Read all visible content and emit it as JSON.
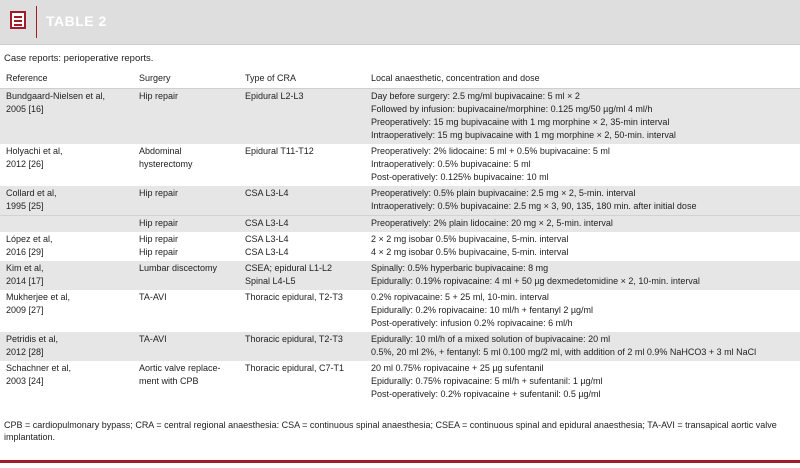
{
  "header": {
    "title": "TABLE 2",
    "icon": "table-list-icon"
  },
  "caption": "Case reports: perioperative reports.",
  "table": {
    "columns": [
      "Reference",
      "Surgery",
      "Type of CRA",
      "Local anaesthetic, concentration and dose"
    ],
    "rows": [
      {
        "reference": [
          "Bundgaard-Nielsen et al,",
          "2005 [16]"
        ],
        "surgery": [
          "Hip repair"
        ],
        "cra": [
          "Epidural L2-L3"
        ],
        "dose": [
          "Day before surgery: 2.5 mg/ml bupivacaine: 5 ml × 2",
          "Followed by infusion: bupivacaine/morphine: 0.125 mg/50 µg/ml 4 ml/h",
          "Preoperatively: 15 mg bupivacaine with 1 mg morphine × 2, 35-min interval",
          "Intraoperatively: 15 mg bupivacaine with 1 mg morphine × 2, 50-min. interval"
        ],
        "shade": true
      },
      {
        "reference": [
          "Holyachi et al,",
          "2012 [26]"
        ],
        "surgery": [
          "Abdominal",
          "hysterectomy"
        ],
        "cra": [
          "Epidural T11-T12"
        ],
        "dose": [
          "Preoperatively: 2% lidocaine: 5 ml + 0.5% bupivacaine: 5 ml",
          "Intraoperatively: 0.5% bupivacaine: 5 ml",
          "Post-operatively: 0.125% bupivacaine: 10 ml"
        ],
        "shade": false
      },
      {
        "reference": [
          "Collard et al,",
          "1995 [25]"
        ],
        "surgery": [
          "Hip repair"
        ],
        "cra": [
          "CSA L3-L4"
        ],
        "dose": [
          "Preoperatively: 0.5% plain bupivacaine: 2.5 mg × 2, 5-min. interval",
          "Intraoperatively: 0.5% bupivacaine: 2.5 mg × 3, 90, 135, 180 min. after initial dose"
        ],
        "shade": true
      },
      {
        "reference": [
          ""
        ],
        "surgery": [
          "Hip repair"
        ],
        "cra": [
          "CSA L3-L4"
        ],
        "dose": [
          "Preoperatively: 2% plain lidocaine: 20 mg × 2, 5-min. interval"
        ],
        "shade": true,
        "line": true
      },
      {
        "reference": [
          "López et al,",
          "2016 [29]"
        ],
        "surgery": [
          "Hip repair",
          "Hip repair"
        ],
        "cra": [
          "CSA L3-L4",
          "CSA L3-L4"
        ],
        "dose": [
          "2 × 2 mg isobar 0.5% bupivacaine, 5-min. interval",
          "4 × 2 mg isobar 0.5% bupivacaine, 5-min. interval"
        ],
        "shade": false
      },
      {
        "reference": [
          "Kim et al,",
          "2014 [17]"
        ],
        "surgery": [
          "Lumbar discectomy"
        ],
        "cra": [
          "CSEA; epidural L1-L2",
          "Spinal L4-L5"
        ],
        "dose": [
          "Spinally: 0.5% hyperbaric bupivacaine: 8 mg",
          "Epidurally: 0.19% ropivacaine: 4 ml + 50 µg dexmedetomidine × 2, 10-min. interval"
        ],
        "shade": true
      },
      {
        "reference": [
          "Mukherjee et al,",
          "2009 [27]"
        ],
        "surgery": [
          "TA-AVI"
        ],
        "cra": [
          "Thoracic epidural, T2-T3"
        ],
        "dose": [
          "0.2% ropivacaine: 5 + 25 ml, 10-min. interval",
          "Epidurally: 0.2% ropivacaine: 10 ml/h + fentanyl 2 µg/ml",
          "Post-operatively: infusion 0.2% ropivacaine: 6 ml/h"
        ],
        "shade": false
      },
      {
        "reference": [
          "Petridis et al,",
          "2012 [28]"
        ],
        "surgery": [
          "TA-AVI"
        ],
        "cra": [
          "Thoracic epidural, T2-T3"
        ],
        "dose": [
          "Epidurally: 10 ml/h of a mixed solution of bupivacaine: 20 ml",
          "0.5%, 20 ml 2%, + fentanyl: 5 ml 0.100 mg/2 ml, with addition of 2 ml 0.9% NaHCO3 + 3 ml NaCl"
        ],
        "shade": true
      },
      {
        "reference": [
          "Schachner et al,",
          "2003 [24]"
        ],
        "surgery": [
          "Aortic valve replace-",
          "ment with CPB"
        ],
        "cra": [
          "Thoracic epidural, C7-T1"
        ],
        "dose": [
          "20 ml 0.75% ropivacaine + 25 µg sufentanil",
          "Epidurally: 0.75% ropivacaine: 5 ml/h + sufentanil: 1 µg/ml",
          "Post-operatively: 0.2% ropivacaine + sufentanil: 0.5 µg/ml"
        ],
        "shade": false
      }
    ]
  },
  "footnote": "CPB = cardiopulmonary bypass; CRA = central regional anaesthesia: CSA = continuous spinal anaesthesia; CSEA = continuous spinal and epidural anaesthesia; TA-AVI = transapical aortic valve implantation.",
  "colors": {
    "accent": "#a01c2a",
    "header_bg": "#dedede",
    "row_shade": "#e6e6e6"
  }
}
